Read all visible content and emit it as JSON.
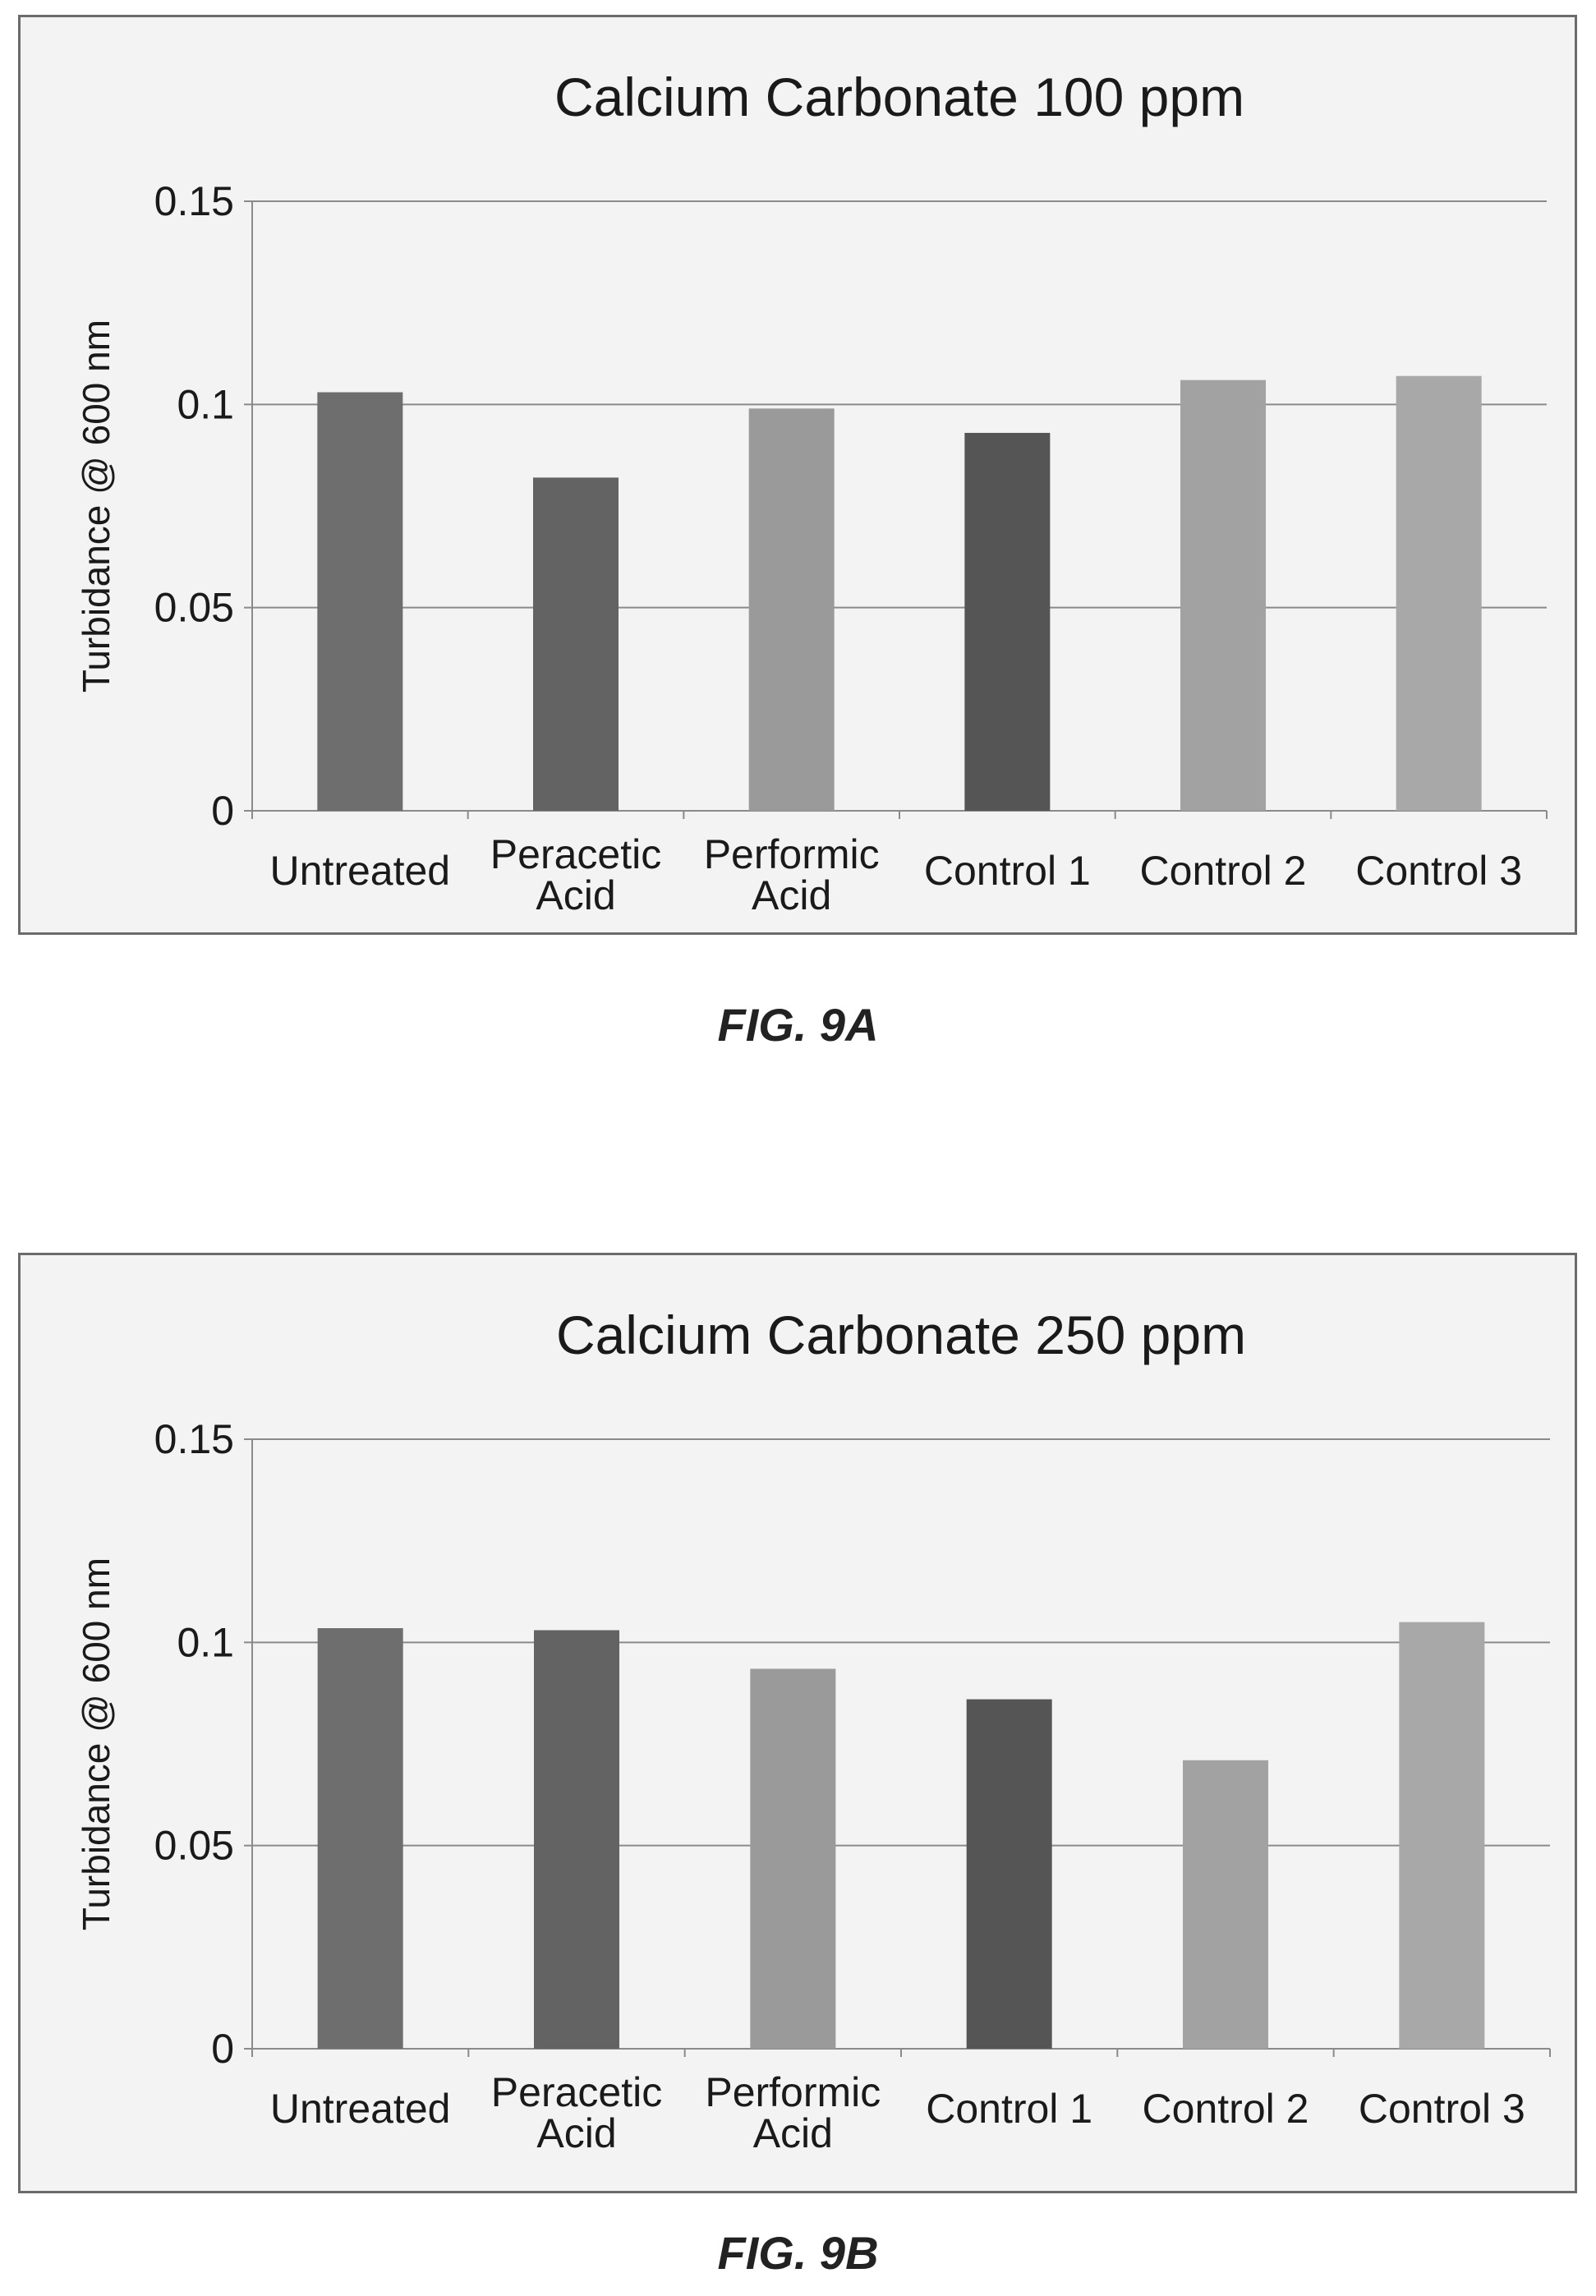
{
  "chart_data": [
    {
      "type": "bar",
      "title": "Calcium Carbonate 100 ppm",
      "xlabel": "",
      "ylabel": "Turbidance @ 600 nm",
      "ylim": [
        0,
        0.15
      ],
      "yticks": [
        "0",
        "0.05",
        "0.1",
        "0.15"
      ],
      "grid": true,
      "categories": [
        [
          "Untreated"
        ],
        [
          "Peracetic",
          "Acid"
        ],
        [
          "Performic",
          "Acid"
        ],
        [
          "Control 1"
        ],
        [
          "Control 2"
        ],
        [
          "Control 3"
        ]
      ],
      "values": [
        0.103,
        0.082,
        0.099,
        0.093,
        0.106,
        0.107
      ],
      "colors": [
        "#6e6e6e",
        "#636363",
        "#9a9a9a",
        "#555555",
        "#a2a2a2",
        "#a8a8a8"
      ]
    },
    {
      "type": "bar",
      "title": "Calcium Carbonate 250 ppm",
      "xlabel": "",
      "ylabel": "Turbidance @ 600 nm",
      "ylim": [
        0,
        0.15
      ],
      "yticks": [
        "0",
        "0.05",
        "0.1",
        "0.15"
      ],
      "grid": true,
      "categories": [
        [
          "Untreated"
        ],
        [
          "Peracetic",
          "Acid"
        ],
        [
          "Performic",
          "Acid"
        ],
        [
          "Control 1"
        ],
        [
          "Control 2"
        ],
        [
          "Control 3"
        ]
      ],
      "values": [
        0.1035,
        0.103,
        0.0935,
        0.086,
        0.071,
        0.105
      ],
      "colors": [
        "#6e6e6e",
        "#636363",
        "#9a9a9a",
        "#555555",
        "#a2a2a2",
        "#a8a8a8"
      ]
    }
  ],
  "captions": {
    "a": "FIG. 9A",
    "b": "FIG. 9B"
  }
}
